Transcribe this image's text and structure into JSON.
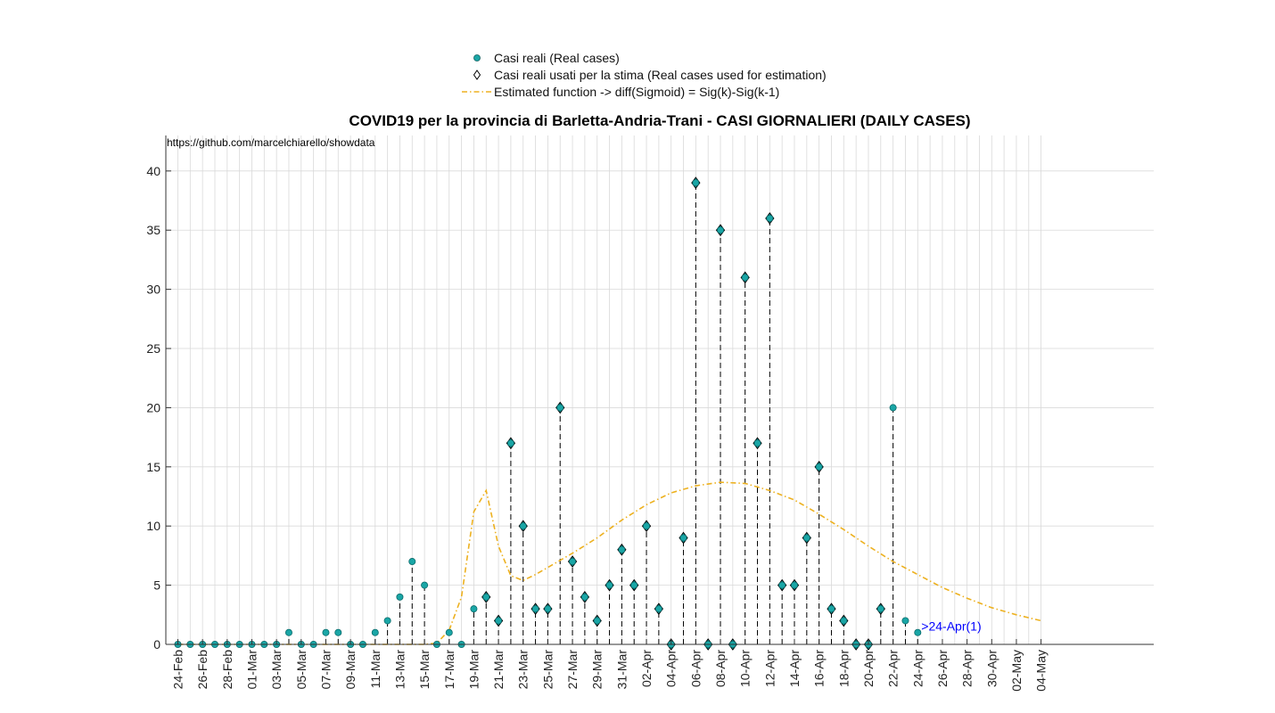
{
  "chart_data": {
    "type": "scatter",
    "title": "COVID19 per la provincia di Barletta-Andria-Trani - CASI GIORNALIERI (DAILY CASES)",
    "source_text": "https://github.com/marcelchiarello/showdata",
    "annotation": ">24-Apr(1)",
    "xlabel": "",
    "ylabel": "",
    "ylim": [
      0,
      43
    ],
    "yticks": [
      0,
      5,
      10,
      15,
      20,
      25,
      30,
      35,
      40
    ],
    "grid": true,
    "legend_position": "top-center",
    "x_start": "24-Feb",
    "x_end": "04-May",
    "xtick_labels": [
      "24-Feb",
      "26-Feb",
      "28-Feb",
      "01-Mar",
      "03-Mar",
      "05-Mar",
      "07-Mar",
      "09-Mar",
      "11-Mar",
      "13-Mar",
      "15-Mar",
      "17-Mar",
      "19-Mar",
      "21-Mar",
      "23-Mar",
      "25-Mar",
      "27-Mar",
      "29-Mar",
      "31-Mar",
      "02-Apr",
      "04-Apr",
      "06-Apr",
      "08-Apr",
      "10-Apr",
      "12-Apr",
      "14-Apr",
      "16-Apr",
      "18-Apr",
      "20-Apr",
      "22-Apr",
      "24-Apr",
      "26-Apr",
      "28-Apr",
      "30-Apr",
      "02-May",
      "04-May"
    ],
    "legend": {
      "real": "Casi reali (Real cases)",
      "used": "Casi reali usati per la stima (Real cases used for estimation)",
      "fit": "Estimated function -> diff(Sigmoid) = Sig(k)-Sig(k-1)"
    },
    "colors": {
      "marker": "#1aa6a6",
      "fit": "#edb120",
      "grid": "#d9d9d9",
      "stem": "#000000",
      "annotation": "#0000ff"
    },
    "series": [
      {
        "name": "Casi reali (Real cases)",
        "dates": [
          "24-Feb",
          "25-Feb",
          "26-Feb",
          "27-Feb",
          "28-Feb",
          "29-Feb",
          "01-Mar",
          "02-Mar",
          "03-Mar",
          "04-Mar",
          "05-Mar",
          "06-Mar",
          "07-Mar",
          "08-Mar",
          "09-Mar",
          "10-Mar",
          "11-Mar",
          "12-Mar",
          "13-Mar",
          "14-Mar",
          "15-Mar",
          "16-Mar",
          "17-Mar",
          "18-Mar",
          "19-Mar",
          "20-Mar",
          "21-Mar",
          "22-Mar",
          "23-Mar",
          "24-Mar",
          "25-Mar",
          "26-Mar",
          "27-Mar",
          "28-Mar",
          "29-Mar",
          "30-Mar",
          "31-Mar",
          "01-Apr",
          "02-Apr",
          "03-Apr",
          "04-Apr",
          "05-Apr",
          "06-Apr",
          "07-Apr",
          "08-Apr",
          "09-Apr",
          "10-Apr",
          "11-Apr",
          "12-Apr",
          "13-Apr",
          "14-Apr",
          "15-Apr",
          "16-Apr",
          "17-Apr",
          "18-Apr",
          "19-Apr",
          "20-Apr",
          "21-Apr",
          "22-Apr",
          "23-Apr",
          "24-Apr"
        ],
        "values": [
          0,
          0,
          0,
          0,
          0,
          0,
          0,
          0,
          0,
          1,
          0,
          0,
          1,
          1,
          0,
          0,
          1,
          2,
          4,
          7,
          5,
          0,
          1,
          0,
          3,
          4,
          2,
          17,
          10,
          3,
          3,
          20,
          7,
          4,
          2,
          5,
          8,
          5,
          10,
          3,
          0,
          9,
          39,
          0,
          35,
          0,
          31,
          17,
          36,
          5,
          5,
          9,
          15,
          3,
          2,
          0,
          0,
          3,
          20,
          2,
          1
        ]
      },
      {
        "name": "Casi reali usati per la stima (Real cases used for estimation)",
        "dates": [
          "20-Mar",
          "21-Mar",
          "22-Mar",
          "23-Mar",
          "24-Mar",
          "25-Mar",
          "26-Mar",
          "27-Mar",
          "28-Mar",
          "29-Mar",
          "30-Mar",
          "31-Mar",
          "01-Apr",
          "02-Apr",
          "03-Apr",
          "04-Apr",
          "05-Apr",
          "06-Apr",
          "07-Apr",
          "08-Apr",
          "09-Apr",
          "10-Apr",
          "11-Apr",
          "12-Apr",
          "13-Apr",
          "14-Apr",
          "15-Apr",
          "16-Apr",
          "17-Apr",
          "18-Apr",
          "19-Apr",
          "20-Apr",
          "21-Apr"
        ],
        "values": [
          4,
          2,
          17,
          10,
          3,
          3,
          20,
          7,
          4,
          2,
          5,
          8,
          5,
          10,
          3,
          0,
          9,
          39,
          0,
          35,
          0,
          31,
          17,
          36,
          5,
          5,
          9,
          15,
          3,
          2,
          0,
          0,
          3
        ]
      },
      {
        "name": "Estimated function -> diff(Sigmoid) = Sig(k)-Sig(k-1)",
        "dates": [
          "24-Feb",
          "10-Mar",
          "15-Mar",
          "16-Mar",
          "17-Mar",
          "18-Mar",
          "19-Mar",
          "20-Mar",
          "21-Mar",
          "22-Mar",
          "23-Mar",
          "24-Mar",
          "25-Mar",
          "27-Mar",
          "29-Mar",
          "31-Mar",
          "02-Apr",
          "04-Apr",
          "06-Apr",
          "08-Apr",
          "10-Apr",
          "12-Apr",
          "14-Apr",
          "16-Apr",
          "18-Apr",
          "20-Apr",
          "22-Apr",
          "24-Apr",
          "26-Apr",
          "28-Apr",
          "30-Apr",
          "02-May",
          "04-May"
        ],
        "values": [
          0,
          0,
          0,
          0.1,
          1.2,
          4.0,
          11.2,
          13.0,
          8.3,
          5.8,
          5.4,
          5.9,
          6.5,
          7.7,
          9.0,
          10.5,
          11.8,
          12.8,
          13.4,
          13.7,
          13.6,
          13.0,
          12.2,
          11.0,
          9.7,
          8.3,
          7.0,
          5.9,
          4.8,
          3.9,
          3.1,
          2.5,
          2.0
        ]
      }
    ]
  }
}
